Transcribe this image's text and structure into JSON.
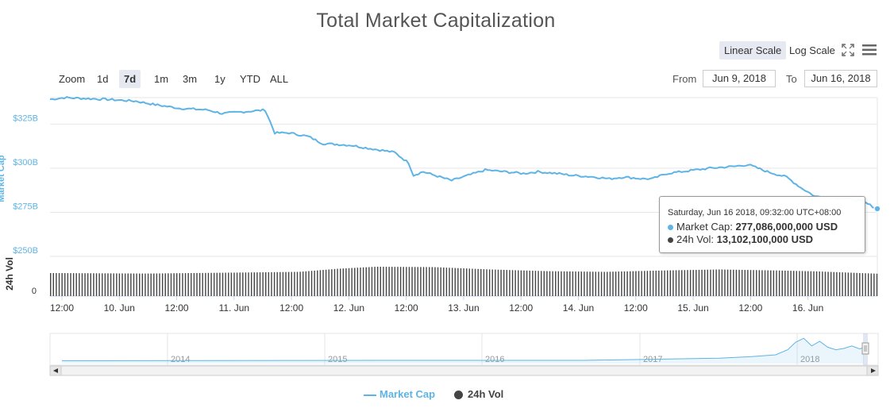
{
  "title": "Total Market Capitalization",
  "scale_buttons": {
    "linear": "Linear Scale",
    "log": "Log Scale"
  },
  "icons": {
    "fullscreen": "fullscreen-icon",
    "menu": "hamburger-menu-icon"
  },
  "zoom": {
    "label": "Zoom",
    "options": [
      "1d",
      "7d",
      "1m",
      "3m",
      "1y",
      "YTD",
      "ALL"
    ],
    "active": "7d"
  },
  "range": {
    "from_label": "From",
    "from_value": "Jun 9, 2018",
    "to_label": "To",
    "to_value": "Jun 16, 2018"
  },
  "legend": {
    "market_cap": "Market Cap",
    "vol": "24h Vol"
  },
  "tooltip": {
    "header": "Saturday, Jun 16 2018, 09:32:00 UTC+08:00",
    "market_cap_label": "Market Cap:",
    "market_cap_value": "277,086,000,000 USD",
    "vol_label": "24h Vol:",
    "vol_value": "13,102,100,000 USD"
  },
  "colors": {
    "market_cap": "#5eb4e5",
    "volume": "#444444",
    "active_button": "#e6e9f2"
  },
  "chart_data": {
    "type": "line",
    "title": "Total Market Capitalization",
    "ylabel": "Market Cap",
    "ylabel2": "24h Vol",
    "yticks": [
      "$250B",
      "$275B",
      "$300B",
      "$325B"
    ],
    "ylim": [
      250,
      340
    ],
    "ytick2": "0",
    "xticks": [
      "12:00",
      "10. Jun",
      "12:00",
      "11. Jun",
      "12:00",
      "12. Jun",
      "12:00",
      "13. Jun",
      "12:00",
      "14. Jun",
      "12:00",
      "15. Jun",
      "12:00",
      "16. Jun"
    ],
    "x_hours": [
      0,
      12,
      24,
      36,
      48,
      60,
      72,
      84,
      96,
      108,
      120,
      132,
      144,
      156
    ],
    "x_range_hours": [
      0,
      173
    ],
    "series": [
      {
        "name": "Market Cap",
        "unit": "B USD",
        "points": [
          [
            0,
            339
          ],
          [
            3,
            340
          ],
          [
            12,
            339
          ],
          [
            18,
            338
          ],
          [
            22,
            336
          ],
          [
            27,
            334
          ],
          [
            33,
            333
          ],
          [
            36,
            331
          ],
          [
            45,
            333
          ],
          [
            47,
            320
          ],
          [
            50,
            320
          ],
          [
            54,
            318
          ],
          [
            57,
            314
          ],
          [
            63,
            313
          ],
          [
            65,
            312
          ],
          [
            72,
            309
          ],
          [
            75,
            303
          ],
          [
            76,
            296
          ],
          [
            78,
            298
          ],
          [
            84,
            293
          ],
          [
            91,
            299
          ],
          [
            99,
            297
          ],
          [
            102,
            298
          ],
          [
            106,
            297
          ],
          [
            109,
            296
          ],
          [
            114,
            295
          ],
          [
            117,
            294
          ],
          [
            120,
            295
          ],
          [
            124,
            294
          ],
          [
            126,
            294
          ],
          [
            129,
            297
          ],
          [
            132,
            298
          ],
          [
            138,
            300
          ],
          [
            143,
            301
          ],
          [
            146,
            302
          ],
          [
            150,
            298
          ],
          [
            154,
            295
          ],
          [
            157,
            289
          ],
          [
            160,
            284
          ],
          [
            166,
            283
          ],
          [
            170,
            281
          ],
          [
            173,
            277
          ]
        ]
      },
      {
        "name": "24h Vol",
        "unit": "B USD",
        "points": [
          [
            0,
            13.5
          ],
          [
            20,
            13.2
          ],
          [
            40,
            13.8
          ],
          [
            52,
            14.2
          ],
          [
            60,
            16.0
          ],
          [
            68,
            17.2
          ],
          [
            80,
            17.0
          ],
          [
            92,
            15.6
          ],
          [
            104,
            14.6
          ],
          [
            116,
            14.2
          ],
          [
            128,
            15.0
          ],
          [
            140,
            15.6
          ],
          [
            152,
            15.0
          ],
          [
            160,
            14.5
          ],
          [
            173,
            13.1
          ]
        ]
      }
    ],
    "navigator": {
      "xticks": [
        "2014",
        "2015",
        "2016",
        "2017",
        "2018"
      ]
    },
    "legend_position": "bottom-center",
    "grid": true
  }
}
